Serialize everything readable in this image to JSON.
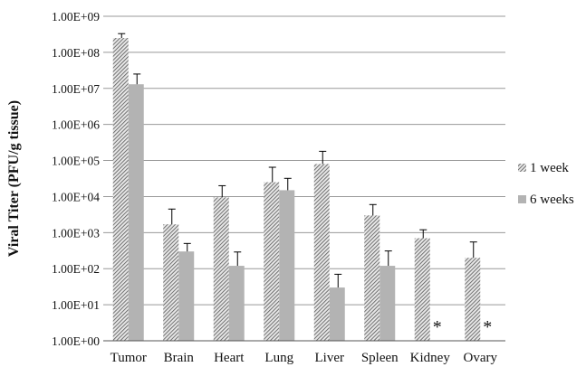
{
  "chart_data": {
    "type": "bar",
    "scale": "log",
    "ylabel": "Viral Titer (PFU/g tissue)",
    "ylim": [
      1,
      1000000000
    ],
    "yticks": [
      "1.00E+00",
      "1.00E+01",
      "1.00E+02",
      "1.00E+03",
      "1.00E+04",
      "1.00E+05",
      "1.00E+06",
      "1.00E+07",
      "1.00E+08",
      "1.00E+09"
    ],
    "grid": true,
    "legend_position": "right",
    "categories": [
      "Tumor",
      "Brain",
      "Heart",
      "Lung",
      "Liver",
      "Spleen",
      "Kidney",
      "Ovary"
    ],
    "series": [
      {
        "name": "1 week",
        "pattern": "diagonal-hatch",
        "color": "#8c8c8c",
        "values": [
          250000000,
          1700,
          9500,
          25000,
          80000,
          3000,
          700,
          200
        ],
        "errors_upper": [
          330000000,
          4500,
          20000,
          65000,
          180000,
          6000,
          1200,
          550
        ]
      },
      {
        "name": "6 weeks",
        "pattern": "solid",
        "color": "#b3b3b3",
        "values": [
          13000000,
          300,
          120,
          15000,
          30,
          120,
          null,
          null
        ],
        "errors_upper": [
          25000000,
          500,
          290,
          32000,
          70,
          310,
          null,
          null
        ]
      }
    ],
    "annotations": [
      {
        "category": "Kidney",
        "text": "*"
      },
      {
        "category": "Ovary",
        "text": "*"
      }
    ]
  }
}
